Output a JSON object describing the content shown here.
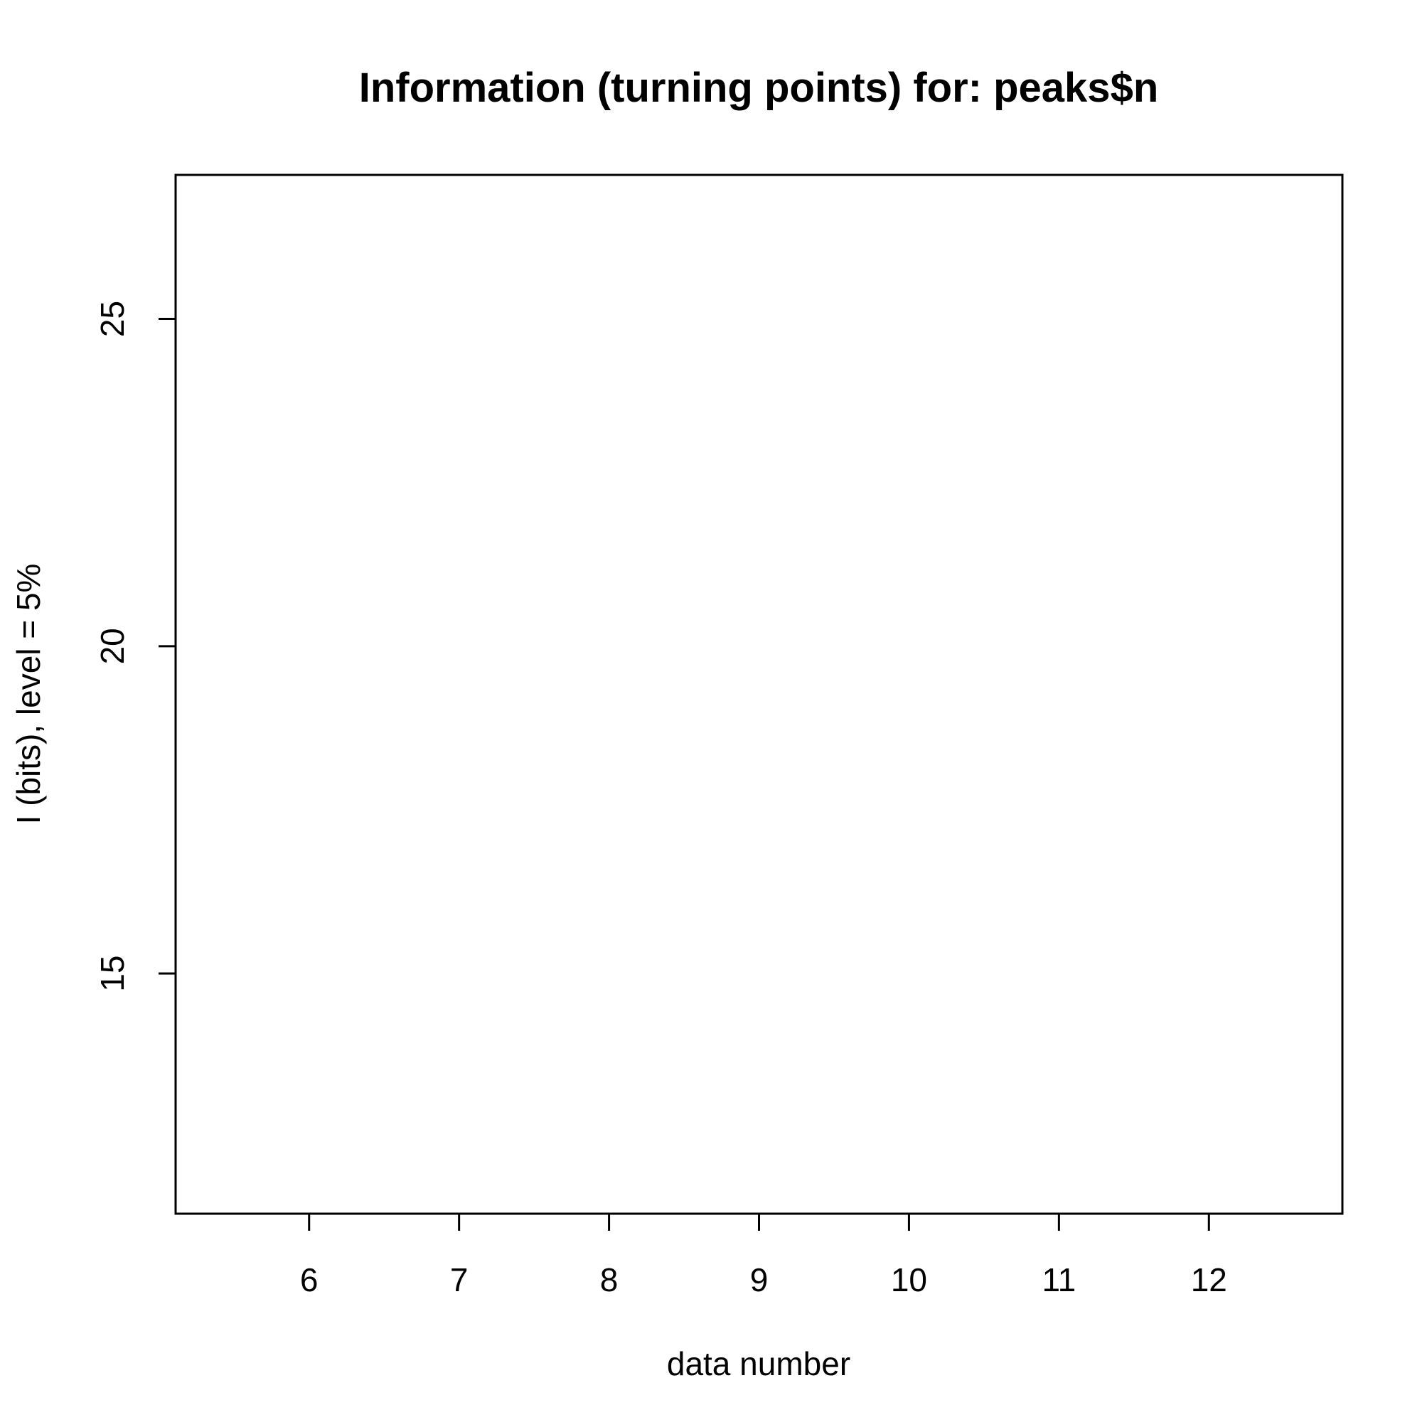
{
  "chart_data": {
    "type": "line",
    "title": "Information (turning points) for: peaks$n",
    "xlabel": "data number",
    "ylabel": "I (bits), level = 5%",
    "xlim": [
      5.11,
      12.89
    ],
    "ylim": [
      11.33,
      27.2
    ],
    "x_ticks": [
      6,
      7,
      8,
      9,
      10,
      11,
      12
    ],
    "y_ticks": [
      15,
      20,
      25
    ],
    "grid": false,
    "series": []
  }
}
